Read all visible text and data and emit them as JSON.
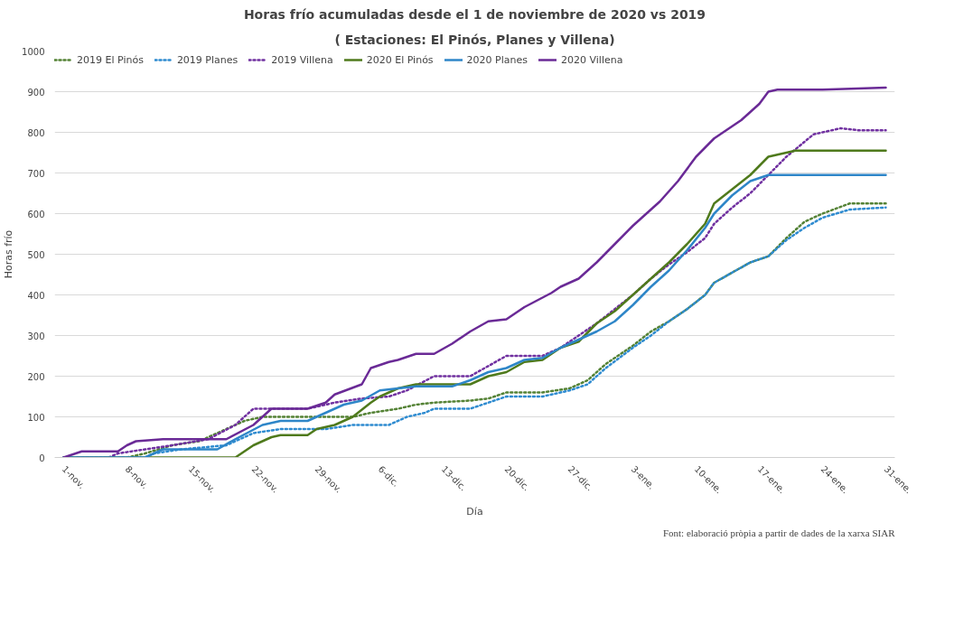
{
  "chart_data": {
    "type": "line",
    "title": "Horas frío acumuladas desde el 1 de noviembre de 2020 vs 2019",
    "subtitle": "( Estaciones: El Pinós, Planes y Villena)",
    "xlabel": "Día",
    "ylabel": "Horas frío",
    "xlim": [
      "2020-10-31",
      "2021-02-01"
    ],
    "xticks": [
      {
        "value": "2020-11-01",
        "label": "1-nov."
      },
      {
        "value": "2020-11-08",
        "label": "8-nov."
      },
      {
        "value": "2020-11-15",
        "label": "15-nov."
      },
      {
        "value": "2020-11-22",
        "label": "22-nov."
      },
      {
        "value": "2020-11-29",
        "label": "29-nov."
      },
      {
        "value": "2020-12-06",
        "label": "6-dic."
      },
      {
        "value": "2020-12-13",
        "label": "13-dic."
      },
      {
        "value": "2020-12-20",
        "label": "20-dic."
      },
      {
        "value": "2020-12-27",
        "label": "27-dic."
      },
      {
        "value": "2021-01-03",
        "label": "3-ene."
      },
      {
        "value": "2021-01-10",
        "label": "10-ene."
      },
      {
        "value": "2021-01-17",
        "label": "17-ene."
      },
      {
        "value": "2021-01-24",
        "label": "24-ene."
      },
      {
        "value": "2021-01-31",
        "label": "31-ene."
      }
    ],
    "ylim": [
      0,
      1000
    ],
    "yticks": [
      0,
      100,
      200,
      300,
      400,
      500,
      600,
      700,
      800,
      900,
      1000
    ],
    "grid": "y",
    "legend": "top left",
    "annotations": [
      "Font: elaboració pròpia a partir de dades de la xarxa SIAR"
    ],
    "series": [
      {
        "name": "2019 El Pinós",
        "color": "#548235",
        "line_style": "dotted",
        "x": [
          "2020-11-01",
          "2020-11-08",
          "2020-11-10",
          "2020-11-13",
          "2020-11-16",
          "2020-11-19",
          "2020-11-21",
          "2020-11-23",
          "2020-11-28",
          "2020-12-03",
          "2020-12-05",
          "2020-12-08",
          "2020-12-10",
          "2020-12-12",
          "2020-12-16",
          "2020-12-18",
          "2020-12-20",
          "2020-12-24",
          "2020-12-27",
          "2020-12-29",
          "2020-12-31",
          "2021-01-03",
          "2021-01-05",
          "2021-01-07",
          "2021-01-09",
          "2021-01-11",
          "2021-01-12",
          "2021-01-14",
          "2021-01-16",
          "2021-01-18",
          "2021-01-20",
          "2021-01-22",
          "2021-01-24",
          "2021-01-27",
          "2021-01-31"
        ],
        "values": [
          0,
          0,
          10,
          30,
          40,
          70,
          90,
          100,
          100,
          100,
          110,
          120,
          130,
          135,
          140,
          145,
          160,
          160,
          170,
          190,
          230,
          275,
          310,
          335,
          365,
          400,
          430,
          455,
          480,
          495,
          540,
          580,
          600,
          625,
          625
        ]
      },
      {
        "name": "2019 Planes",
        "color": "#2e8bd0",
        "line_style": "dotted",
        "x": [
          "2020-11-01",
          "2020-11-10",
          "2020-11-11",
          "2020-11-14",
          "2020-11-19",
          "2020-11-22",
          "2020-11-25",
          "2020-11-30",
          "2020-12-03",
          "2020-12-07",
          "2020-12-09",
          "2020-12-11",
          "2020-12-12",
          "2020-12-16",
          "2020-12-18",
          "2020-12-20",
          "2020-12-24",
          "2020-12-27",
          "2020-12-29",
          "2020-12-31",
          "2021-01-03",
          "2021-01-05",
          "2021-01-07",
          "2021-01-09",
          "2021-01-11",
          "2021-01-12",
          "2021-01-14",
          "2021-01-16",
          "2021-01-18",
          "2021-01-20",
          "2021-01-22",
          "2021-01-24",
          "2021-01-27",
          "2021-01-31"
        ],
        "values": [
          0,
          0,
          10,
          20,
          30,
          60,
          70,
          70,
          80,
          80,
          100,
          110,
          120,
          120,
          135,
          150,
          150,
          165,
          180,
          220,
          270,
          300,
          335,
          365,
          400,
          430,
          455,
          480,
          495,
          535,
          565,
          590,
          610,
          615
        ]
      },
      {
        "name": "2019 Villena",
        "color": "#7030a0",
        "line_style": "dotted",
        "x": [
          "2020-11-01",
          "2020-11-06",
          "2020-11-07",
          "2020-11-10",
          "2020-11-13",
          "2020-11-17",
          "2020-11-20",
          "2020-11-22",
          "2020-11-28",
          "2020-12-01",
          "2020-12-04",
          "2020-12-07",
          "2020-12-09",
          "2020-12-12",
          "2020-12-16",
          "2020-12-18",
          "2020-12-20",
          "2020-12-24",
          "2020-12-26",
          "2020-12-28",
          "2020-12-30",
          "2021-01-01",
          "2021-01-03",
          "2021-01-05",
          "2021-01-07",
          "2021-01-09",
          "2021-01-11",
          "2021-01-12",
          "2021-01-14",
          "2021-01-16",
          "2021-01-18",
          "2021-01-20",
          "2021-01-23",
          "2021-01-26",
          "2021-01-28",
          "2021-01-31"
        ],
        "values": [
          0,
          0,
          10,
          20,
          30,
          45,
          80,
          120,
          120,
          135,
          145,
          150,
          165,
          200,
          200,
          225,
          250,
          250,
          270,
          300,
          330,
          365,
          400,
          440,
          475,
          505,
          540,
          575,
          615,
          650,
          695,
          740,
          795,
          810,
          805,
          805
        ]
      },
      {
        "name": "2020 El Pinós",
        "color": "#4f7a1c",
        "line_style": "solid",
        "x": [
          "2020-11-01",
          "2020-11-20",
          "2020-11-22",
          "2020-11-24",
          "2020-11-25",
          "2020-11-28",
          "2020-11-29",
          "2020-12-01",
          "2020-12-03",
          "2020-12-05",
          "2020-12-06",
          "2020-12-08",
          "2020-12-10",
          "2020-12-16",
          "2020-12-18",
          "2020-12-20",
          "2020-12-22",
          "2020-12-24",
          "2020-12-26",
          "2020-12-28",
          "2020-12-30",
          "2021-01-01",
          "2021-01-03",
          "2021-01-05",
          "2021-01-07",
          "2021-01-09",
          "2021-01-11",
          "2021-01-12",
          "2021-01-14",
          "2021-01-16",
          "2021-01-18",
          "2021-01-20",
          "2021-01-21",
          "2021-01-31"
        ],
        "values": [
          0,
          0,
          30,
          50,
          55,
          55,
          70,
          80,
          100,
          135,
          150,
          170,
          180,
          180,
          200,
          210,
          235,
          240,
          270,
          285,
          330,
          360,
          400,
          440,
          480,
          525,
          575,
          625,
          660,
          695,
          740,
          750,
          755,
          755
        ]
      },
      {
        "name": "2020 Planes",
        "color": "#2e86c8",
        "line_style": "solid",
        "x": [
          "2020-11-01",
          "2020-11-10",
          "2020-11-12",
          "2020-11-18",
          "2020-11-20",
          "2020-11-23",
          "2020-11-25",
          "2020-11-28",
          "2020-11-30",
          "2020-12-02",
          "2020-12-04",
          "2020-12-06",
          "2020-12-08",
          "2020-12-10",
          "2020-12-14",
          "2020-12-16",
          "2020-12-18",
          "2020-12-20",
          "2020-12-22",
          "2020-12-24",
          "2020-12-26",
          "2020-12-28",
          "2020-12-30",
          "2021-01-01",
          "2021-01-03",
          "2021-01-05",
          "2021-01-07",
          "2021-01-09",
          "2021-01-11",
          "2021-01-12",
          "2021-01-14",
          "2021-01-16",
          "2021-01-18",
          "2021-01-31"
        ],
        "values": [
          0,
          0,
          20,
          20,
          45,
          80,
          90,
          90,
          110,
          130,
          140,
          165,
          170,
          175,
          175,
          190,
          210,
          220,
          240,
          245,
          270,
          290,
          310,
          335,
          375,
          420,
          460,
          510,
          565,
          600,
          645,
          680,
          695,
          695
        ]
      },
      {
        "name": "2020 Villena",
        "color": "#6a2a96",
        "line_style": "solid",
        "x": [
          "2020-11-01",
          "2020-11-03",
          "2020-11-07",
          "2020-11-08",
          "2020-11-09",
          "2020-11-12",
          "2020-11-19",
          "2020-11-22",
          "2020-11-24",
          "2020-11-28",
          "2020-11-30",
          "2020-12-01",
          "2020-12-04",
          "2020-12-05",
          "2020-12-07",
          "2020-12-08",
          "2020-12-10",
          "2020-12-12",
          "2020-12-14",
          "2020-12-16",
          "2020-12-18",
          "2020-12-20",
          "2020-12-22",
          "2020-12-25",
          "2020-12-26",
          "2020-12-28",
          "2020-12-30",
          "2021-01-01",
          "2021-01-03",
          "2021-01-06",
          "2021-01-08",
          "2021-01-10",
          "2021-01-12",
          "2021-01-15",
          "2021-01-17",
          "2021-01-18",
          "2021-01-19",
          "2021-01-24",
          "2021-01-31"
        ],
        "values": [
          0,
          15,
          15,
          30,
          40,
          45,
          45,
          80,
          120,
          120,
          135,
          155,
          180,
          220,
          235,
          240,
          255,
          255,
          280,
          310,
          335,
          340,
          370,
          405,
          420,
          440,
          480,
          525,
          570,
          630,
          680,
          740,
          785,
          830,
          870,
          900,
          905,
          905,
          910
        ]
      }
    ]
  }
}
